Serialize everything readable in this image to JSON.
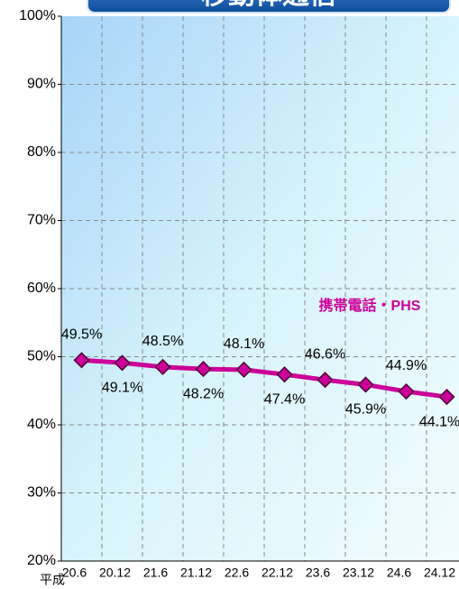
{
  "chart_data": {
    "type": "line",
    "title": "移動体通信",
    "x_label": "平成",
    "categories": [
      "20.6",
      "20.12",
      "21.6",
      "21.12",
      "22.6",
      "22.12",
      "23.6",
      "23.12",
      "24.6",
      "24.12"
    ],
    "series": [
      {
        "name": "携帯電話・PHS",
        "color": "#cc0099",
        "values": [
          49.5,
          49.1,
          48.5,
          48.2,
          48.1,
          47.4,
          46.6,
          45.9,
          44.9,
          44.1
        ],
        "value_labels": [
          "49.5%",
          "49.1%",
          "48.5%",
          "48.2%",
          "48.1%",
          "47.4%",
          "46.6%",
          "45.9%",
          "44.9%",
          "44.1%"
        ]
      }
    ],
    "ylim": [
      20,
      100
    ],
    "yticks": [
      {
        "value": 20,
        "label": "20%"
      },
      {
        "value": 30,
        "label": "30%"
      },
      {
        "value": 40,
        "label": "40%"
      },
      {
        "value": 50,
        "label": "50%"
      },
      {
        "value": 60,
        "label": "60%"
      },
      {
        "value": 70,
        "label": "70%"
      },
      {
        "value": 80,
        "label": "80%"
      },
      {
        "value": 90,
        "label": "90%"
      },
      {
        "value": 100,
        "label": "100%"
      }
    ],
    "grid": true
  }
}
